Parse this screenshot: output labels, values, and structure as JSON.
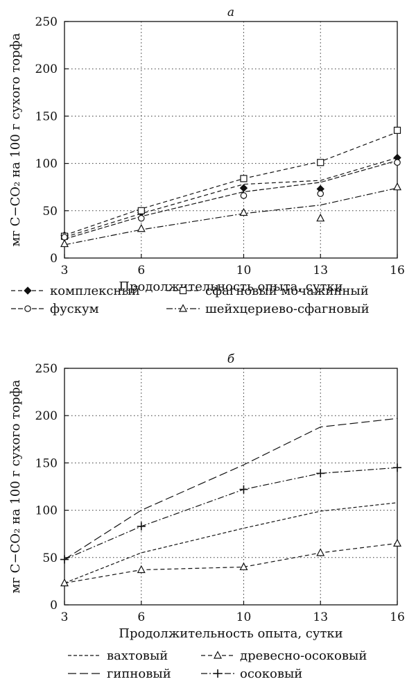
{
  "chart_data": [
    {
      "type": "line",
      "title": "а",
      "xlabel": "Продолжительность опыта, сутки",
      "ylabel": "мг С−CO₂ на 100 г сухого торфа",
      "x": [
        3,
        6,
        10,
        13,
        16
      ],
      "xlim": [
        3,
        16
      ],
      "ylim": [
        0,
        250
      ],
      "yticks": [
        "0",
        "50",
        "100",
        "150",
        "200",
        "250"
      ],
      "xticks": [
        "3",
        "6",
        "10",
        "13",
        "16"
      ],
      "grid": "dotted",
      "legend_position": "bottom",
      "series": [
        {
          "name": "комплексный",
          "points": [
            24,
            48,
            74,
            73,
            106
          ],
          "fit": [
            22,
            47,
            78,
            82,
            106
          ],
          "marker": "filled-diamond",
          "dash": "6,4"
        },
        {
          "name": "сфагновый мочажинный",
          "points": [
            23,
            50,
            84,
            101,
            135
          ],
          "fit": [
            24,
            52,
            84,
            102,
            133
          ],
          "marker": "square",
          "dash": "6,4"
        },
        {
          "name": "фускум",
          "points": [
            22,
            42,
            66,
            68,
            101
          ],
          "fit": [
            20,
            44,
            70,
            80,
            103
          ],
          "marker": "circle",
          "dash": "7,3"
        },
        {
          "name": "шейхцериево-сфагновый",
          "points": [
            15,
            31,
            48,
            42,
            75
          ],
          "fit": [
            14,
            30,
            47,
            56,
            74
          ],
          "marker": "triangle",
          "dash": "9,3,2,3"
        }
      ]
    },
    {
      "type": "line",
      "title": "б",
      "xlabel": "Продолжительность опыта, сутки",
      "ylabel": "мг С−CO₂ на 100 г сухого торфа",
      "x": [
        3,
        6,
        10,
        13,
        16
      ],
      "xlim": [
        3,
        16
      ],
      "ylim": [
        0,
        250
      ],
      "yticks": [
        "0",
        "50",
        "100",
        "150",
        "200",
        "250"
      ],
      "xticks": [
        "3",
        "6",
        "10",
        "13",
        "16"
      ],
      "grid": "dotted",
      "legend_position": "bottom",
      "series": [
        {
          "name": "вахтовый",
          "points": [],
          "fit": [
            23,
            55,
            81,
            99,
            108
          ],
          "marker": "none",
          "dash": "5,3"
        },
        {
          "name": "древесно-осоковый",
          "points": [
            23,
            37,
            40,
            55,
            65
          ],
          "fit": [
            23,
            37,
            40,
            55,
            65
          ],
          "marker": "triangle",
          "dash": "6,4"
        },
        {
          "name": "гипновый",
          "points": [],
          "fit": [
            48,
            100,
            148,
            188,
            197
          ],
          "marker": "none",
          "dash": "12,5"
        },
        {
          "name": "осоковый",
          "points": [
            48,
            83,
            122,
            139,
            145
          ],
          "fit": [
            48,
            83,
            122,
            139,
            145
          ],
          "marker": "plus",
          "dash": "9,3,2,3"
        }
      ]
    }
  ]
}
